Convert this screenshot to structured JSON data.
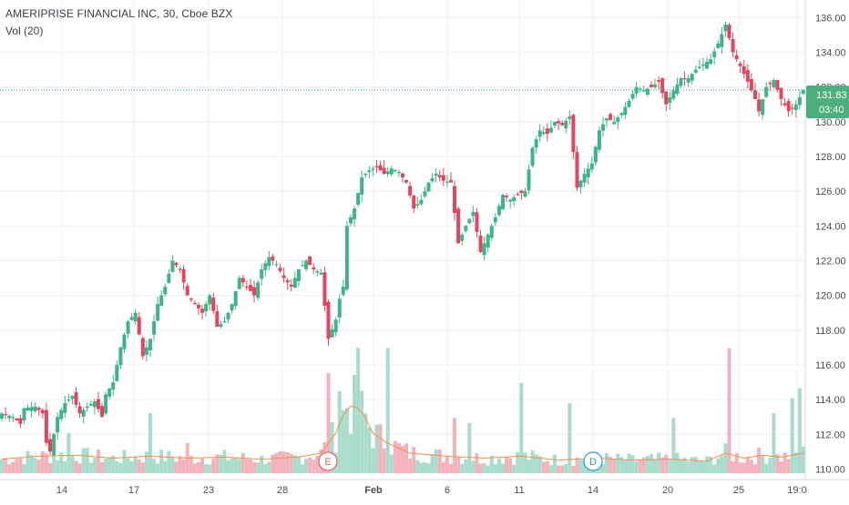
{
  "header": {
    "symbol_line": "AMERIPRISE FINANCIAL INC, 30, Cboe BZX",
    "indicator_line": "Vol (20)"
  },
  "price_axis": {
    "current_price_label": "131.83",
    "countdown_label": "03:40",
    "badge_color": "#4caf7d"
  },
  "event_markers": [
    {
      "letter": "E",
      "x_label": "Feb",
      "offset_days": -1.5,
      "color": "#e0626b"
    },
    {
      "letter": "D",
      "x_label": "14",
      "offset_days": 0,
      "color": "#2f9bd8"
    }
  ],
  "colors": {
    "up": "#3fb38a",
    "down": "#e0475e",
    "vol_up": "#a9dccb",
    "vol_down": "#f2b3bd",
    "vol_ma": "#f0914b",
    "grid": "#eef0f3",
    "last_price_line": "#2eaa5f"
  },
  "chart_data": {
    "type": "candlestick",
    "title": "AMERIPRISE FINANCIAL INC, 30, Cboe BZX",
    "y_ticks": [
      110,
      112,
      114,
      116,
      118,
      120,
      122,
      124,
      126,
      128,
      130,
      132,
      134,
      136
    ],
    "ylim": [
      109.5,
      136.8
    ],
    "x_tick_labels": [
      "14",
      "17",
      "23",
      "28",
      "Feb",
      "6",
      "11",
      "14",
      "20",
      "25",
      "19:0"
    ],
    "last_price": 131.83,
    "price_path": [
      [
        0,
        113.2
      ],
      [
        3,
        113.0
      ],
      [
        5,
        112.6
      ],
      [
        6,
        113.5
      ],
      [
        9,
        113.6
      ],
      [
        11,
        113.2
      ],
      [
        12,
        111.5
      ],
      [
        13,
        111.0
      ],
      [
        15,
        113.0
      ],
      [
        17,
        113.8
      ],
      [
        19,
        114.2
      ],
      [
        21,
        113.2
      ],
      [
        23,
        113.6
      ],
      [
        25,
        113.9
      ],
      [
        27,
        113.0
      ],
      [
        28,
        114.3
      ],
      [
        30,
        115.0
      ],
      [
        32,
        117.0
      ],
      [
        34,
        118.5
      ],
      [
        36,
        119.0
      ],
      [
        38,
        116.5
      ],
      [
        40,
        117.5
      ],
      [
        42,
        119.5
      ],
      [
        44,
        120.5
      ],
      [
        46,
        122.0
      ],
      [
        48,
        121.5
      ],
      [
        50,
        120.0
      ],
      [
        52,
        119.5
      ],
      [
        54,
        119.0
      ],
      [
        56,
        120.0
      ],
      [
        58,
        118.2
      ],
      [
        60,
        118.5
      ],
      [
        62,
        119.5
      ],
      [
        64,
        121.0
      ],
      [
        66,
        120.5
      ],
      [
        68,
        120.0
      ],
      [
        70,
        121.5
      ],
      [
        72,
        122.2
      ],
      [
        74,
        121.8
      ],
      [
        76,
        121.0
      ],
      [
        78,
        120.5
      ],
      [
        80,
        121.5
      ],
      [
        82,
        122.0
      ],
      [
        84,
        121.5
      ],
      [
        86,
        121.3
      ],
      [
        88,
        117.5
      ],
      [
        90,
        118.6
      ],
      [
        91,
        119.8
      ],
      [
        92,
        120.5
      ],
      [
        93,
        124.0
      ],
      [
        95,
        125.0
      ],
      [
        97,
        126.8
      ],
      [
        99,
        127.2
      ],
      [
        101,
        127.4
      ],
      [
        103,
        127.0
      ],
      [
        105,
        127.3
      ],
      [
        107,
        127.1
      ],
      [
        109,
        126.5
      ],
      [
        111,
        125.0
      ],
      [
        113,
        125.5
      ],
      [
        115,
        126.5
      ],
      [
        117,
        127.0
      ],
      [
        119,
        126.6
      ],
      [
        121,
        126.5
      ],
      [
        123,
        123.0
      ],
      [
        125,
        124.0
      ],
      [
        127,
        124.8
      ],
      [
        129,
        122.5
      ],
      [
        131,
        123.5
      ],
      [
        133,
        124.5
      ],
      [
        135,
        125.8
      ],
      [
        137,
        125.5
      ],
      [
        139,
        125.8
      ],
      [
        141,
        126.0
      ],
      [
        143,
        128.5
      ],
      [
        145,
        129.5
      ],
      [
        147,
        129.3
      ],
      [
        149,
        130.0
      ],
      [
        151,
        129.8
      ],
      [
        153,
        130.3
      ],
      [
        155,
        126.2
      ],
      [
        157,
        127.0
      ],
      [
        159,
        127.6
      ],
      [
        161,
        129.5
      ],
      [
        163,
        130.2
      ],
      [
        165,
        130.0
      ],
      [
        167,
        130.5
      ],
      [
        169,
        131.2
      ],
      [
        171,
        132.0
      ],
      [
        173,
        131.8
      ],
      [
        175,
        132.0
      ],
      [
        177,
        132.3
      ],
      [
        179,
        131.0
      ],
      [
        181,
        131.8
      ],
      [
        183,
        132.5
      ],
      [
        185,
        132.5
      ],
      [
        187,
        133.0
      ],
      [
        189,
        133.3
      ],
      [
        191,
        133.6
      ],
      [
        193,
        134.5
      ],
      [
        195,
        135.6
      ],
      [
        197,
        134.0
      ],
      [
        199,
        133.2
      ],
      [
        201,
        132.3
      ],
      [
        203,
        131.3
      ],
      [
        204,
        130.6
      ],
      [
        206,
        132.0
      ],
      [
        208,
        132.4
      ],
      [
        210,
        131.3
      ],
      [
        212,
        130.6
      ],
      [
        214,
        131.0
      ],
      [
        216,
        131.83
      ]
    ],
    "volume_ma_path": [
      [
        0,
        0.14
      ],
      [
        10,
        0.17
      ],
      [
        20,
        0.18
      ],
      [
        30,
        0.15
      ],
      [
        40,
        0.17
      ],
      [
        50,
        0.15
      ],
      [
        60,
        0.16
      ],
      [
        70,
        0.14
      ],
      [
        80,
        0.16
      ],
      [
        86,
        0.2
      ],
      [
        90,
        0.4
      ],
      [
        92,
        0.58
      ],
      [
        94,
        0.67
      ],
      [
        96,
        0.65
      ],
      [
        98,
        0.55
      ],
      [
        100,
        0.4
      ],
      [
        104,
        0.3
      ],
      [
        110,
        0.2
      ],
      [
        120,
        0.17
      ],
      [
        130,
        0.15
      ],
      [
        140,
        0.17
      ],
      [
        150,
        0.13
      ],
      [
        160,
        0.15
      ],
      [
        170,
        0.13
      ],
      [
        180,
        0.14
      ],
      [
        190,
        0.12
      ],
      [
        195,
        0.2
      ],
      [
        200,
        0.15
      ],
      [
        205,
        0.18
      ],
      [
        210,
        0.16
      ],
      [
        216,
        0.2
      ]
    ],
    "volume_spikes": [
      [
        18,
        0.4
      ],
      [
        40,
        0.6
      ],
      [
        50,
        0.3
      ],
      [
        88,
        1.0
      ],
      [
        91,
        0.82
      ],
      [
        93,
        0.65
      ],
      [
        96,
        1.25
      ],
      [
        104,
        1.25
      ],
      [
        122,
        0.55
      ],
      [
        126,
        0.5
      ],
      [
        140,
        0.9
      ],
      [
        153,
        0.7
      ],
      [
        181,
        0.55
      ],
      [
        196,
        1.25
      ],
      [
        208,
        0.6
      ],
      [
        213,
        0.75
      ],
      [
        215,
        0.85
      ]
    ]
  }
}
